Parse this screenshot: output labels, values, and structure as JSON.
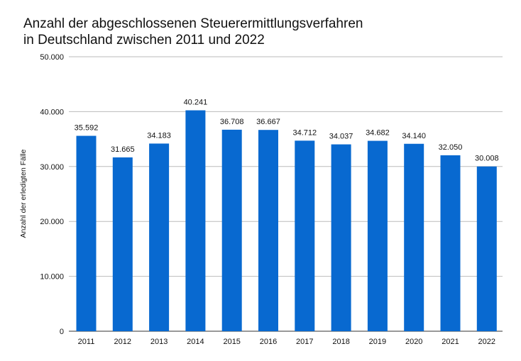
{
  "chart_data": {
    "type": "bar",
    "title": "Anzahl der abgeschlossenen Steuerermittlungsverfahren\nin Deutschland zwischen 2011 und 2022",
    "xlabel": "",
    "ylabel": "Anzahl der erledigten Fälle",
    "categories": [
      "2011",
      "2012",
      "2013",
      "2014",
      "2015",
      "2016",
      "2017",
      "2018",
      "2019",
      "2020",
      "2021",
      "2022"
    ],
    "values": [
      35592,
      31665,
      34183,
      40241,
      36708,
      36667,
      34712,
      34037,
      34682,
      34140,
      32050,
      30008
    ],
    "data_labels": [
      "35.592",
      "31.665",
      "34.183",
      "40.241",
      "36.708",
      "36.667",
      "34.712",
      "34.037",
      "34.682",
      "34.140",
      "32.050",
      "30.008"
    ],
    "ylim": [
      0,
      50000
    ],
    "yticks": [
      0,
      10000,
      20000,
      30000,
      40000,
      50000
    ],
    "ytick_labels": [
      "0",
      "10.000",
      "20.000",
      "30.000",
      "40.000",
      "50.000"
    ],
    "grid": true,
    "bar_color": "#0869D0"
  }
}
